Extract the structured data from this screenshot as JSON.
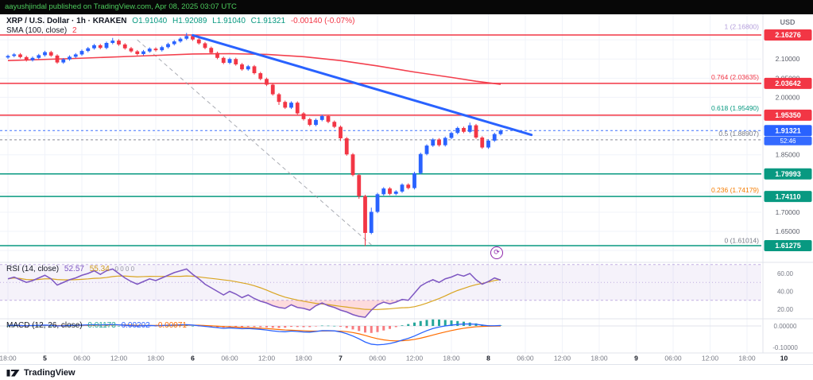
{
  "topbar": {
    "text": "aayushjindal published on TradingView.com, Apr 08, 2025 03:07 UTC"
  },
  "legend": {
    "symbol": "XRP / U.S. Dollar · 1h · KRAKEN",
    "o": "O1.91040",
    "h": "H1.92089",
    "l": "L1.91040",
    "c": "C1.91321",
    "change": "-0.00140 (-0.07%)",
    "sma_label": "SMA (100, close)",
    "sma_value": "2",
    "rsi_label": "RSI (14, close)",
    "rsi_value": "52.57",
    "rsi_ma": "55.34",
    "rsi_extra": "0 0 0 0",
    "macd_label": "MACD (12, 26, close)",
    "macd_hist": "0.01173",
    "macd_value": "0.00202",
    "macd_signal": "-0.00971"
  },
  "marker": {
    "glyph": "⟳"
  },
  "footer": {
    "brand": "TradingView"
  },
  "colors": {
    "up": "#2962ff",
    "down": "#f23645",
    "sma": "#f23645",
    "trend": "#2962ff",
    "guide": "#9598a1",
    "rsi": "#7e57c2",
    "rsi_ma": "#d9a521",
    "macd": "#2962ff",
    "signal": "#ff6d00",
    "hist_pos": "#26a69a",
    "hist_neg": "#f77c80",
    "red_level": "#f23645",
    "green_level": "#089981",
    "current": "#2962ff",
    "grid": "#f0f3fa",
    "separator": "#e0e3eb",
    "axis_text": "#787b86"
  },
  "chart_data": {
    "type": "candlestick",
    "title": "XRP / U.S. Dollar · 1h · KRAKEN",
    "interval": "1h",
    "open_first": 2.104,
    "default_wick": 0.0035,
    "closes": [
      2.108,
      2.112,
      2.105,
      2.097,
      2.103,
      2.11,
      2.118,
      2.109,
      2.091,
      2.099,
      2.106,
      2.112,
      2.121,
      2.128,
      2.136,
      2.129,
      2.142,
      2.148,
      2.138,
      2.128,
      2.12,
      2.113,
      2.12,
      2.127,
      2.123,
      2.131,
      2.139,
      2.146,
      2.153,
      2.16,
      2.151,
      2.141,
      2.129,
      2.116,
      2.103,
      2.09,
      2.1,
      2.086,
      2.073,
      2.081,
      2.063,
      2.048,
      2.033,
      2.008,
      1.988,
      1.973,
      1.986,
      1.958,
      1.943,
      1.928,
      1.941,
      1.951,
      1.936,
      1.923,
      1.893,
      1.851,
      1.797,
      1.742,
      1.646,
      1.701,
      1.747,
      1.762,
      1.748,
      1.754,
      1.772,
      1.763,
      1.802,
      1.852,
      1.874,
      1.89,
      1.875,
      1.894,
      1.907,
      1.92,
      1.91,
      1.927,
      1.895,
      1.869,
      1.887,
      1.904,
      1.91321
    ],
    "wick_overrides": {
      "17": {
        "h": 2.155
      },
      "29": {
        "h": 2.168
      },
      "44": {
        "l": 1.98
      },
      "54": {
        "l": 1.886
      },
      "57": {
        "l": 1.735
      },
      "58": {
        "l": 1.612
      },
      "59": {
        "h": 1.712
      },
      "75": {
        "h": 1.934
      }
    },
    "sma_points": [
      [
        0,
        2.096
      ],
      [
        10,
        2.101
      ],
      [
        20,
        2.107
      ],
      [
        30,
        2.113
      ],
      [
        36,
        2.114
      ],
      [
        42,
        2.112
      ],
      [
        48,
        2.106
      ],
      [
        54,
        2.096
      ],
      [
        60,
        2.082
      ],
      [
        66,
        2.066
      ],
      [
        72,
        2.052
      ],
      [
        76,
        2.042
      ],
      [
        80,
        2.034
      ]
    ],
    "trendline": {
      "from_i": 30,
      "from_p": 2.162,
      "to_i": 85,
      "to_p": 1.902
    },
    "dashed_guide": {
      "from_i": 21,
      "from_p": 2.15,
      "to_i": 59,
      "to_p": 1.615
    },
    "hlines": [
      {
        "price": 2.16276,
        "color": "#f23645",
        "dash": false
      },
      {
        "price": 2.03642,
        "color": "#f23645",
        "dash": false
      },
      {
        "price": 1.9535,
        "color": "#f23645",
        "dash": false
      },
      {
        "price": 1.79993,
        "color": "#089981",
        "dash": false
      },
      {
        "price": 1.7411,
        "color": "#089981",
        "dash": false
      },
      {
        "price": 1.61275,
        "color": "#089981",
        "dash": false
      },
      {
        "price": 1.88907,
        "color": "#787b86",
        "dash": true
      },
      {
        "price": 1.91321,
        "color": "#2962ff",
        "dash": true
      }
    ],
    "fib_labels": [
      {
        "label": "1 (2.16800)",
        "price": 2.168,
        "color": "#b39ddb"
      },
      {
        "label": "0.764 (2.03635)",
        "price": 2.03635,
        "color": "#f23645"
      },
      {
        "label": "0.618 (1.95490)",
        "price": 1.9549,
        "color": "#089981"
      },
      {
        "label": "0.5 (1.88907)",
        "price": 1.88907,
        "color": "#787b86"
      },
      {
        "label": "0.236 (1.74179)",
        "price": 1.74179,
        "color": "#f57c00"
      },
      {
        "label": "0 (1.61014)",
        "price": 1.61014,
        "color": "#787b86"
      }
    ],
    "price_scale": {
      "currency": "USD",
      "plain_labels": [
        {
          "text": "2.10000",
          "price": 2.1
        },
        {
          "text": "2.05000",
          "price": 2.05
        },
        {
          "text": "2.00000",
          "price": 2.0
        },
        {
          "text": "1.85000",
          "price": 1.85
        },
        {
          "text": "1.70000",
          "price": 1.7
        },
        {
          "text": "1.65000",
          "price": 1.65
        }
      ],
      "badges": [
        {
          "text": "2.16276",
          "price": 2.16276,
          "bg": "#f23645"
        },
        {
          "text": "2.03642",
          "price": 2.03642,
          "bg": "#f23645"
        },
        {
          "text": "1.95350",
          "price": 1.9535,
          "bg": "#f23645"
        },
        {
          "text": "1.91321",
          "price": 1.91321,
          "bg": "#2962ff",
          "countdown": "52:46"
        },
        {
          "text": "1.79993",
          "price": 1.79993,
          "bg": "#089981"
        },
        {
          "text": "1.74110",
          "price": 1.7411,
          "bg": "#089981"
        },
        {
          "text": "1.61275",
          "price": 1.61275,
          "bg": "#089981"
        }
      ]
    },
    "time_axis": [
      [
        "18:00",
        0
      ],
      [
        "5",
        6
      ],
      [
        "06:00",
        12
      ],
      [
        "12:00",
        18
      ],
      [
        "18:00",
        24
      ],
      [
        "6",
        30
      ],
      [
        "06:00",
        36
      ],
      [
        "12:00",
        42
      ],
      [
        "18:00",
        48
      ],
      [
        "7",
        54
      ],
      [
        "06:00",
        60
      ],
      [
        "12:00",
        66
      ],
      [
        "18:00",
        72
      ],
      [
        "8",
        78
      ],
      [
        "06:00",
        84
      ],
      [
        "12:00",
        90
      ],
      [
        "18:00",
        96
      ],
      [
        "9",
        102
      ],
      [
        "06:00",
        108
      ],
      [
        "12:00",
        114
      ],
      [
        "18:00",
        120
      ],
      [
        "10",
        126
      ]
    ],
    "rsi": {
      "values": [
        54,
        56,
        53,
        50,
        52,
        55,
        58,
        54,
        47,
        50,
        53,
        55,
        58,
        60,
        63,
        59,
        63,
        65,
        60,
        55,
        51,
        48,
        51,
        54,
        52,
        55,
        58,
        61,
        63,
        65,
        59,
        54,
        48,
        44,
        40,
        36,
        40,
        37,
        33,
        36,
        32,
        29,
        27,
        24,
        22,
        21,
        25,
        22,
        21,
        19,
        24,
        27,
        24,
        22,
        19,
        17,
        14,
        12,
        11,
        19,
        25,
        28,
        26,
        28,
        31,
        30,
        38,
        46,
        50,
        53,
        50,
        54,
        56,
        59,
        57,
        60,
        53,
        48,
        51,
        55,
        52.57
      ],
      "axis_labels": [
        60,
        40,
        20
      ],
      "band": [
        70,
        30
      ],
      "mid": 50,
      "ma_window": 14
    },
    "macd": {
      "values": [
        0.002,
        0.003,
        0.002,
        0.001,
        0.002,
        0.003,
        0.004,
        0.003,
        0.0,
        0.001,
        0.002,
        0.003,
        0.004,
        0.005,
        0.006,
        0.005,
        0.006,
        0.007,
        0.005,
        0.003,
        0.001,
        0.0,
        0.001,
        0.002,
        0.001,
        0.002,
        0.003,
        0.004,
        0.005,
        0.006,
        0.004,
        0.001,
        -0.002,
        -0.005,
        -0.008,
        -0.011,
        -0.009,
        -0.011,
        -0.013,
        -0.012,
        -0.014,
        -0.016,
        -0.019,
        -0.023,
        -0.026,
        -0.027,
        -0.024,
        -0.026,
        -0.028,
        -0.029,
        -0.026,
        -0.022,
        -0.022,
        -0.023,
        -0.028,
        -0.036,
        -0.047,
        -0.06,
        -0.075,
        -0.085,
        -0.088,
        -0.086,
        -0.082,
        -0.075,
        -0.066,
        -0.058,
        -0.047,
        -0.034,
        -0.022,
        -0.012,
        -0.005,
        0.0,
        0.004,
        0.007,
        0.009,
        0.009,
        0.008,
        0.004,
        0.001,
        0.001,
        0.00202
      ],
      "signal_ema": 9,
      "axis_labels": [
        [
          "0.00000",
          0
        ],
        [
          "-0.10000",
          -0.1
        ]
      ]
    }
  }
}
